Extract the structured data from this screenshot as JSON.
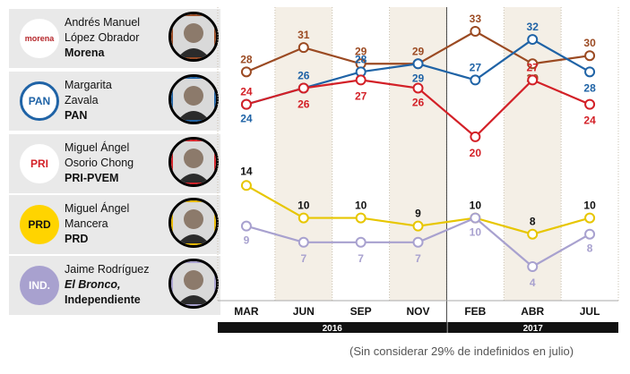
{
  "candidates": [
    {
      "name_lines": [
        "Andrés Manuel",
        "López Obrador"
      ],
      "party": "Morena",
      "party_italic": false,
      "logo_text": "morena",
      "logo_bg": "#ffffff",
      "logo_color": "#b5262a",
      "ring": "#9b4a22"
    },
    {
      "name_lines": [
        "Margarita",
        "Zavala"
      ],
      "party": "PAN",
      "party_italic": false,
      "logo_text": "PAN",
      "logo_bg": "#ffffff",
      "logo_color": "#1f63a6",
      "ring": "#1f63a6"
    },
    {
      "name_lines": [
        "Miguel Ángel",
        "Osorio Chong"
      ],
      "party": "PRI-PVEM",
      "party_italic": false,
      "logo_text": "PRI",
      "logo_bg": "#ffffff",
      "logo_color": "#d32027",
      "ring": "#d32027"
    },
    {
      "name_lines": [
        "Miguel Ángel",
        "Mancera"
      ],
      "party": "PRD",
      "party_italic": false,
      "logo_text": "PRD",
      "logo_bg": "#ffd400",
      "logo_color": "#111111",
      "ring": "#e7b800"
    },
    {
      "name_lines": [
        "Jaime Rodríguez",
        "El Bronco,"
      ],
      "party": "Independiente",
      "party_italic": true,
      "logo_text": "IND.",
      "logo_bg": "#a8a1cf",
      "logo_color": "#ffffff",
      "ring": "#a8a1cf"
    }
  ],
  "chart_data": {
    "type": "line",
    "categories": [
      "MAR",
      "JUN",
      "SEP",
      "NOV",
      "FEB",
      "ABR",
      "JUL"
    ],
    "year_groups": [
      {
        "label": "2016",
        "from": 0,
        "to": 3
      },
      {
        "label": "2017",
        "from": 4,
        "to": 6
      }
    ],
    "ylim": [
      0,
      35
    ],
    "series": [
      {
        "name": "Morena",
        "color": "#9b4a22",
        "values": [
          28,
          31,
          29,
          29,
          33,
          29,
          30
        ]
      },
      {
        "name": "PAN",
        "color": "#1f63a6",
        "values": [
          24,
          26,
          28,
          29,
          27,
          32,
          28
        ]
      },
      {
        "name": "PRI-PVEM",
        "color": "#d32027",
        "values": [
          24,
          26,
          27,
          26,
          20,
          27,
          24
        ]
      },
      {
        "name": "PRD",
        "color": "#e7c600",
        "label_color": "#111111",
        "values": [
          14,
          10,
          10,
          9,
          10,
          8,
          10
        ]
      },
      {
        "name": "Independiente",
        "color": "#a8a1cf",
        "values": [
          9,
          7,
          7,
          7,
          10,
          4,
          8
        ]
      }
    ]
  },
  "footnote": "(Sin considerar 29% de indefinidos en julio)"
}
